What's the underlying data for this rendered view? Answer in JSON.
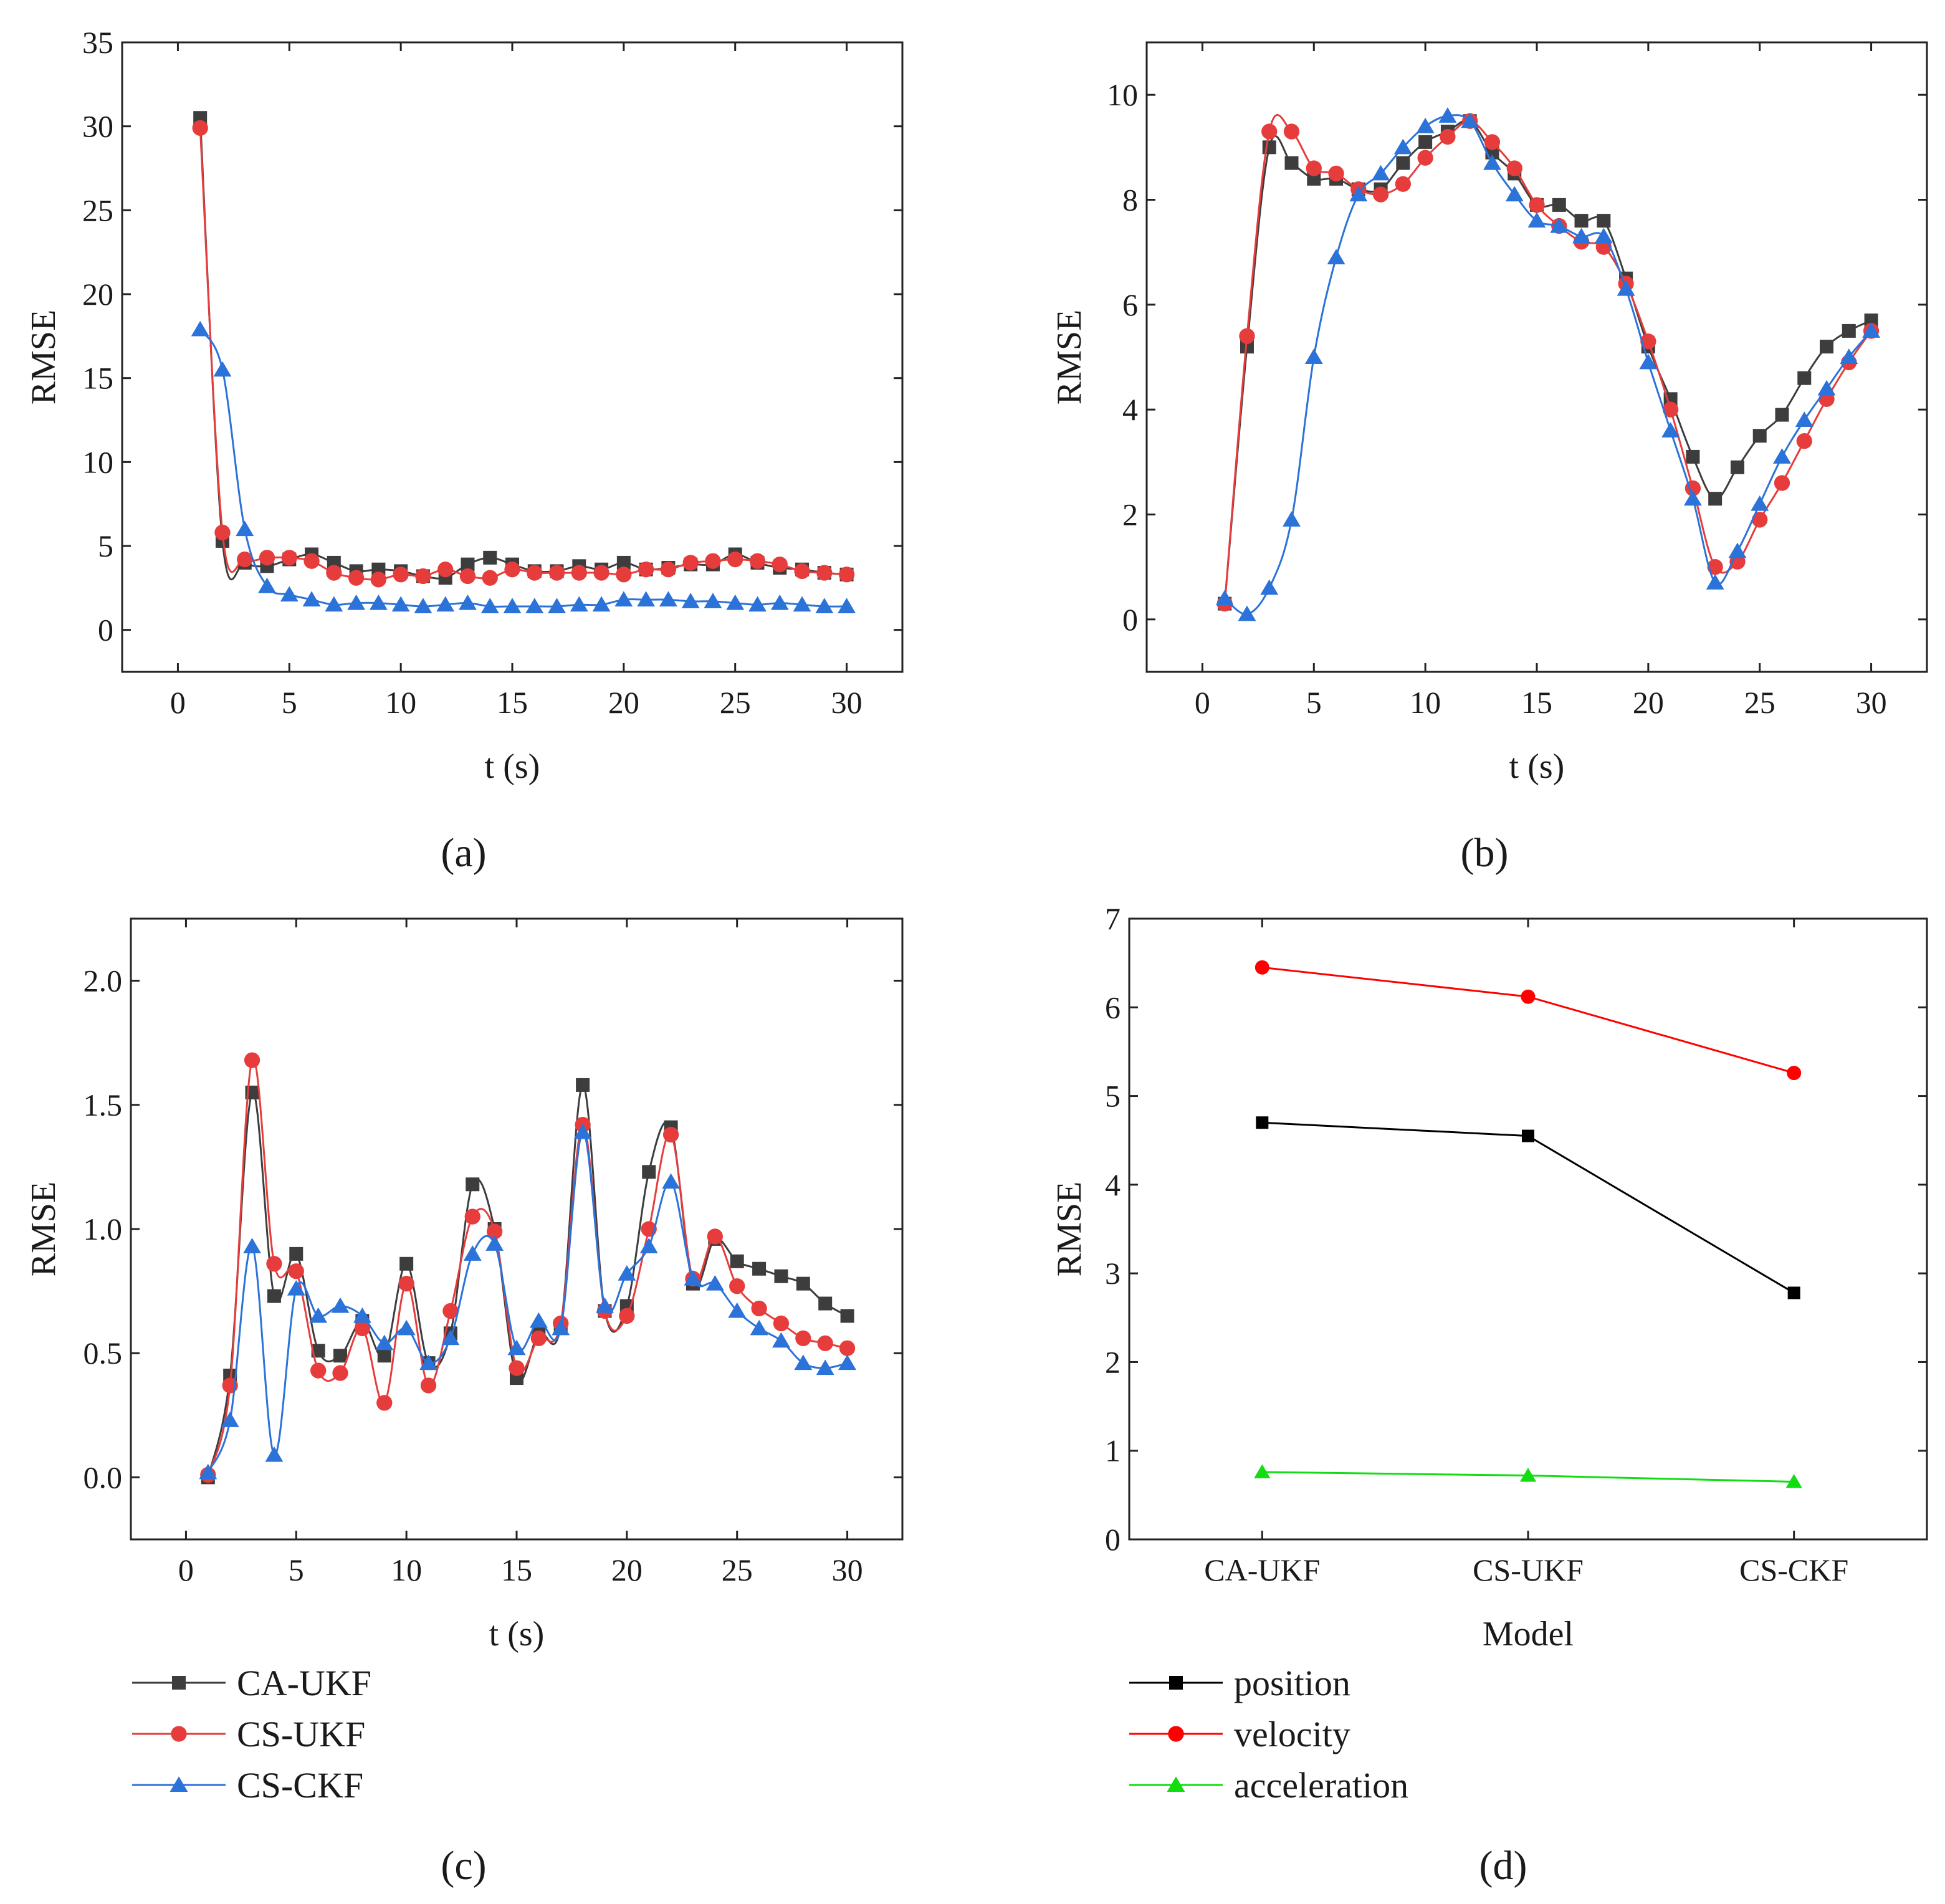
{
  "chart_data": [
    {
      "type": "line",
      "panel_label": "(a)",
      "xlabel": "t (s)",
      "ylabel": "RMSE",
      "xlim": [
        -2.5,
        32.5
      ],
      "ylim": [
        -2.5,
        35
      ],
      "xticks": [
        0,
        5,
        10,
        15,
        20,
        25,
        30
      ],
      "yticks": [
        0,
        5,
        10,
        15,
        20,
        25,
        30,
        35
      ],
      "grid": false,
      "x": [
        1,
        2,
        3,
        4,
        5,
        6,
        7,
        8,
        9,
        10,
        11,
        12,
        13,
        14,
        15,
        16,
        17,
        18,
        19,
        20,
        21,
        22,
        23,
        24,
        25,
        26,
        27,
        28,
        29,
        30
      ],
      "series": [
        {
          "name": "CA-UKF",
          "color": "#3d3d3d",
          "marker": "square",
          "values": [
            30.5,
            5.3,
            4.0,
            3.8,
            4.2,
            4.5,
            4.0,
            3.5,
            3.6,
            3.5,
            3.2,
            3.1,
            3.9,
            4.3,
            3.9,
            3.5,
            3.5,
            3.8,
            3.6,
            4.0,
            3.6,
            3.7,
            3.9,
            3.9,
            4.5,
            4.0,
            3.7,
            3.6,
            3.4,
            3.3
          ]
        },
        {
          "name": "CS-UKF",
          "color": "#e63c3c",
          "marker": "circle",
          "values": [
            29.9,
            5.8,
            4.2,
            4.3,
            4.3,
            4.1,
            3.4,
            3.1,
            3.0,
            3.3,
            3.2,
            3.6,
            3.2,
            3.1,
            3.6,
            3.4,
            3.4,
            3.4,
            3.4,
            3.3,
            3.6,
            3.6,
            4.0,
            4.1,
            4.2,
            4.1,
            3.9,
            3.5,
            3.4,
            3.3
          ]
        },
        {
          "name": "CS-CKF",
          "color": "#2b72d9",
          "marker": "triangle",
          "values": [
            17.9,
            15.5,
            6.0,
            2.6,
            2.1,
            1.8,
            1.5,
            1.6,
            1.6,
            1.5,
            1.4,
            1.5,
            1.6,
            1.4,
            1.4,
            1.4,
            1.4,
            1.5,
            1.5,
            1.8,
            1.8,
            1.8,
            1.7,
            1.7,
            1.6,
            1.5,
            1.6,
            1.5,
            1.4,
            1.4
          ]
        }
      ]
    },
    {
      "type": "line",
      "panel_label": "(b)",
      "xlabel": "t (s)",
      "ylabel": "RMSE",
      "xlim": [
        -2.5,
        32.5
      ],
      "ylim": [
        -1,
        11
      ],
      "xticks": [
        0,
        5,
        10,
        15,
        20,
        25,
        30
      ],
      "yticks": [
        0,
        2,
        4,
        6,
        8,
        10
      ],
      "grid": false,
      "x": [
        1,
        2,
        3,
        4,
        5,
        6,
        7,
        8,
        9,
        10,
        11,
        12,
        13,
        14,
        15,
        16,
        17,
        18,
        19,
        20,
        21,
        22,
        23,
        24,
        25,
        26,
        27,
        28,
        29,
        30
      ],
      "series": [
        {
          "name": "CA-UKF",
          "color": "#3d3d3d",
          "marker": "square",
          "values": [
            0.3,
            5.2,
            9.0,
            8.7,
            8.4,
            8.4,
            8.2,
            8.2,
            8.7,
            9.1,
            9.3,
            9.5,
            8.9,
            8.5,
            7.9,
            7.9,
            7.6,
            7.6,
            6.5,
            5.2,
            4.2,
            3.1,
            2.3,
            2.9,
            3.5,
            3.9,
            4.6,
            5.2,
            5.5,
            5.7
          ]
        },
        {
          "name": "CS-UKF",
          "color": "#e63c3c",
          "marker": "circle",
          "values": [
            0.3,
            5.4,
            9.3,
            9.3,
            8.6,
            8.5,
            8.2,
            8.1,
            8.3,
            8.8,
            9.2,
            9.5,
            9.1,
            8.6,
            7.9,
            7.5,
            7.2,
            7.1,
            6.4,
            5.3,
            4.0,
            2.5,
            1.0,
            1.1,
            1.9,
            2.6,
            3.4,
            4.2,
            4.9,
            5.5
          ]
        },
        {
          "name": "CS-CKF",
          "color": "#2b72d9",
          "marker": "triangle",
          "values": [
            0.4,
            0.1,
            0.6,
            1.9,
            5.0,
            6.9,
            8.1,
            8.5,
            9.0,
            9.4,
            9.6,
            9.5,
            8.7,
            8.1,
            7.6,
            7.5,
            7.3,
            7.3,
            6.3,
            4.9,
            3.6,
            2.3,
            0.7,
            1.3,
            2.2,
            3.1,
            3.8,
            4.4,
            5.0,
            5.5
          ]
        }
      ]
    },
    {
      "type": "line",
      "panel_label": "(c)",
      "xlabel": "t (s)",
      "ylabel": "RMSE",
      "xlim": [
        -2.5,
        32.5
      ],
      "ylim": [
        -0.25,
        2.25
      ],
      "xticks": [
        0,
        5,
        10,
        15,
        20,
        25,
        30
      ],
      "yticks": [
        "0.0",
        "0.5",
        "1.0",
        "1.5",
        "2.0"
      ],
      "grid": false,
      "x": [
        1,
        2,
        3,
        4,
        5,
        6,
        7,
        8,
        9,
        10,
        11,
        12,
        13,
        14,
        15,
        16,
        17,
        18,
        19,
        20,
        21,
        22,
        23,
        24,
        25,
        26,
        27,
        28,
        29,
        30
      ],
      "series": [
        {
          "name": "CA-UKF",
          "color": "#3d3d3d",
          "marker": "square",
          "values": [
            0.0,
            0.41,
            1.55,
            0.73,
            0.9,
            0.51,
            0.49,
            0.63,
            0.49,
            0.86,
            0.46,
            0.58,
            1.18,
            1.0,
            0.4,
            0.58,
            0.61,
            1.58,
            0.67,
            0.69,
            1.23,
            1.41,
            0.78,
            0.96,
            0.87,
            0.84,
            0.81,
            0.78,
            0.7,
            0.65
          ]
        },
        {
          "name": "CS-UKF",
          "color": "#e63c3c",
          "marker": "circle",
          "values": [
            0.01,
            0.37,
            1.68,
            0.86,
            0.83,
            0.43,
            0.42,
            0.6,
            0.3,
            0.78,
            0.37,
            0.67,
            1.05,
            0.99,
            0.44,
            0.56,
            0.62,
            1.42,
            0.67,
            0.65,
            1.0,
            1.38,
            0.8,
            0.97,
            0.77,
            0.68,
            0.62,
            0.56,
            0.54,
            0.52
          ]
        },
        {
          "name": "CS-CKF",
          "color": "#2b72d9",
          "marker": "triangle",
          "values": [
            0.02,
            0.23,
            0.93,
            0.09,
            0.76,
            0.65,
            0.69,
            0.65,
            0.54,
            0.6,
            0.46,
            0.56,
            0.9,
            0.94,
            0.52,
            0.63,
            0.6,
            1.39,
            0.69,
            0.82,
            0.93,
            1.19,
            0.8,
            0.78,
            0.67,
            0.6,
            0.55,
            0.46,
            0.44,
            0.46
          ]
        }
      ]
    },
    {
      "type": "line",
      "panel_label": "(d)",
      "xlabel": "Model",
      "ylabel": "RMSE",
      "categories": [
        "CA-UKF",
        "CS-UKF",
        "CS-CKF"
      ],
      "ylim": [
        0,
        7
      ],
      "yticks": [
        0,
        1,
        2,
        3,
        4,
        5,
        6,
        7
      ],
      "grid": false,
      "series": [
        {
          "name": "position",
          "color": "#000000",
          "marker": "square",
          "values": [
            4.7,
            4.55,
            2.78
          ]
        },
        {
          "name": "velocity",
          "color": "#ff0000",
          "marker": "circle",
          "values": [
            6.45,
            6.12,
            5.26
          ]
        },
        {
          "name": "acceleration",
          "color": "#11dd11",
          "marker": "triangle",
          "values": [
            0.76,
            0.72,
            0.65
          ]
        }
      ]
    }
  ]
}
